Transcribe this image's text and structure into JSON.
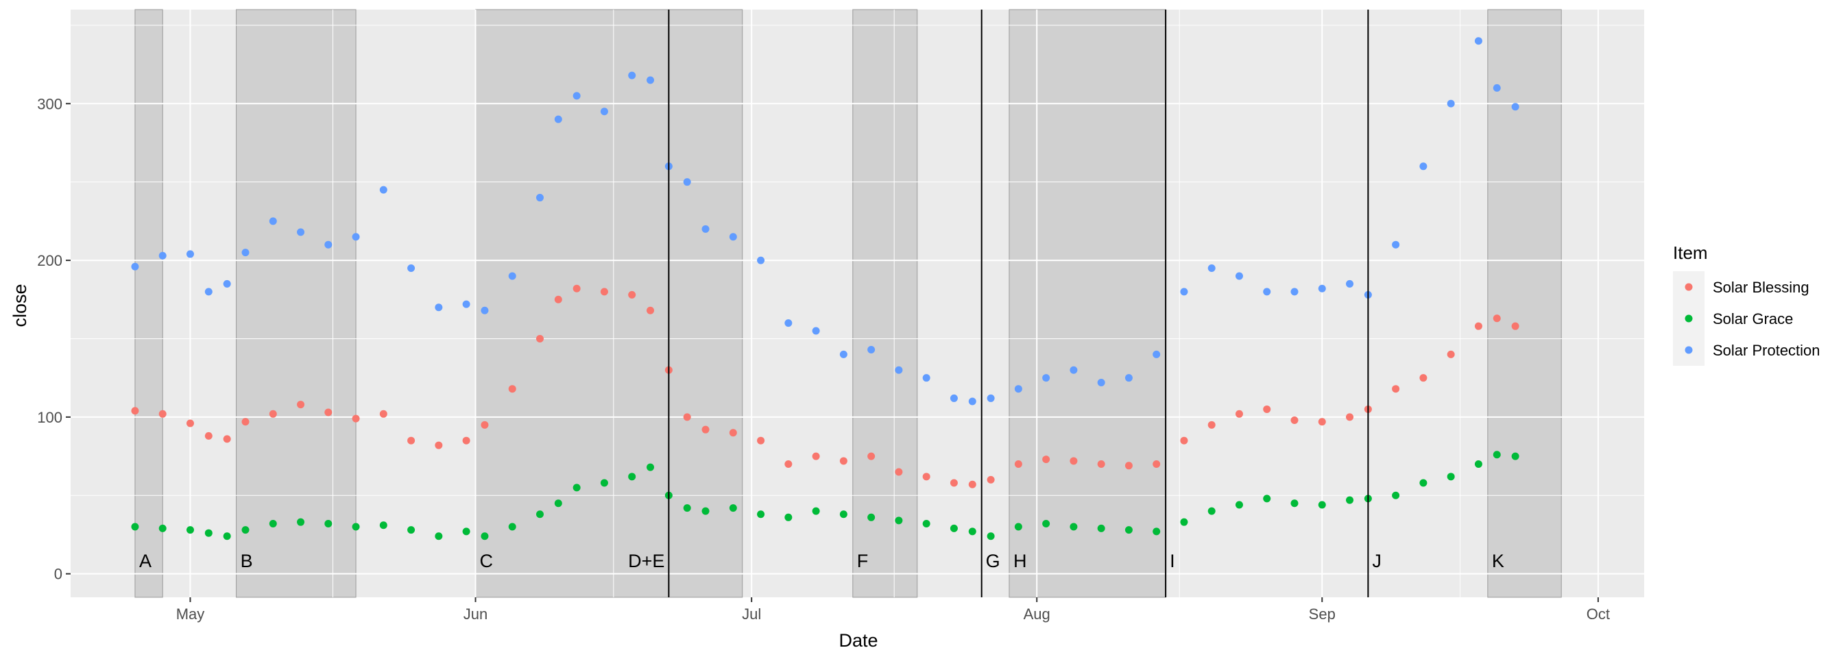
{
  "chart_data": {
    "type": "scatter",
    "xlabel": "Date",
    "ylabel": "close",
    "x_range": [
      "2017-04-18",
      "2017-10-06"
    ],
    "ylim": [
      -15,
      360
    ],
    "x_ticks": [
      {
        "date": "2017-05-01",
        "label": "May"
      },
      {
        "date": "2017-06-01",
        "label": "Jun"
      },
      {
        "date": "2017-07-01",
        "label": "Jul"
      },
      {
        "date": "2017-08-01",
        "label": "Aug"
      },
      {
        "date": "2017-09-01",
        "label": "Sep"
      },
      {
        "date": "2017-10-01",
        "label": "Oct"
      }
    ],
    "y_ticks": [
      0,
      100,
      200,
      300
    ],
    "grid": true,
    "legend": {
      "title": "Item",
      "position": "right",
      "entries": [
        {
          "name": "Solar Blessing",
          "color": "#F8766D"
        },
        {
          "name": "Solar Grace",
          "color": "#00BA38"
        },
        {
          "name": "Solar Protection",
          "color": "#619CFF"
        }
      ]
    },
    "shaded_periods": [
      {
        "label": "A",
        "start": "2017-04-25",
        "end": "2017-04-28"
      },
      {
        "label": "B",
        "start": "2017-05-06",
        "end": "2017-05-19"
      },
      {
        "label": "C",
        "start": "2017-06-01",
        "end": "2017-06-30"
      },
      {
        "label": "F",
        "start": "2017-07-12",
        "end": "2017-07-19"
      },
      {
        "label": "H",
        "start": "2017-07-29",
        "end": "2017-08-15"
      },
      {
        "label": "K",
        "start": "2017-09-19",
        "end": "2017-09-27"
      }
    ],
    "event_lines": [
      {
        "label": "D+E",
        "date": "2017-06-22"
      },
      {
        "label": "G",
        "date": "2017-07-26"
      },
      {
        "label": "I",
        "date": "2017-08-15"
      },
      {
        "label": "J",
        "date": "2017-09-06"
      }
    ],
    "series": [
      {
        "name": "Solar Blessing",
        "color": "#F8766D",
        "x": [
          "2017-04-25",
          "2017-04-28",
          "2017-05-01",
          "2017-05-03",
          "2017-05-05",
          "2017-05-07",
          "2017-05-10",
          "2017-05-13",
          "2017-05-16",
          "2017-05-19",
          "2017-05-22",
          "2017-05-25",
          "2017-05-28",
          "2017-05-31",
          "2017-06-02",
          "2017-06-05",
          "2017-06-08",
          "2017-06-10",
          "2017-06-12",
          "2017-06-15",
          "2017-06-18",
          "2017-06-20",
          "2017-06-22",
          "2017-06-24",
          "2017-06-26",
          "2017-06-29",
          "2017-07-02",
          "2017-07-05",
          "2017-07-08",
          "2017-07-11",
          "2017-07-14",
          "2017-07-17",
          "2017-07-20",
          "2017-07-23",
          "2017-07-25",
          "2017-07-27",
          "2017-07-30",
          "2017-08-02",
          "2017-08-05",
          "2017-08-08",
          "2017-08-11",
          "2017-08-14",
          "2017-08-17",
          "2017-08-20",
          "2017-08-23",
          "2017-08-26",
          "2017-08-29",
          "2017-09-01",
          "2017-09-04",
          "2017-09-06",
          "2017-09-09",
          "2017-09-12",
          "2017-09-15",
          "2017-09-18",
          "2017-09-20",
          "2017-09-22"
        ],
        "y": [
          104,
          102,
          96,
          88,
          86,
          97,
          102,
          108,
          103,
          99,
          102,
          85,
          82,
          85,
          95,
          118,
          150,
          175,
          182,
          180,
          178,
          168,
          130,
          100,
          92,
          90,
          85,
          70,
          75,
          72,
          75,
          65,
          62,
          58,
          57,
          60,
          70,
          73,
          72,
          70,
          69,
          70,
          85,
          95,
          102,
          105,
          98,
          97,
          100,
          105,
          118,
          125,
          140,
          158,
          163,
          158
        ]
      },
      {
        "name": "Solar Grace",
        "color": "#00BA38",
        "x": [
          "2017-04-25",
          "2017-04-28",
          "2017-05-01",
          "2017-05-03",
          "2017-05-05",
          "2017-05-07",
          "2017-05-10",
          "2017-05-13",
          "2017-05-16",
          "2017-05-19",
          "2017-05-22",
          "2017-05-25",
          "2017-05-28",
          "2017-05-31",
          "2017-06-02",
          "2017-06-05",
          "2017-06-08",
          "2017-06-10",
          "2017-06-12",
          "2017-06-15",
          "2017-06-18",
          "2017-06-20",
          "2017-06-22",
          "2017-06-24",
          "2017-06-26",
          "2017-06-29",
          "2017-07-02",
          "2017-07-05",
          "2017-07-08",
          "2017-07-11",
          "2017-07-14",
          "2017-07-17",
          "2017-07-20",
          "2017-07-23",
          "2017-07-25",
          "2017-07-27",
          "2017-07-30",
          "2017-08-02",
          "2017-08-05",
          "2017-08-08",
          "2017-08-11",
          "2017-08-14",
          "2017-08-17",
          "2017-08-20",
          "2017-08-23",
          "2017-08-26",
          "2017-08-29",
          "2017-09-01",
          "2017-09-04",
          "2017-09-06",
          "2017-09-09",
          "2017-09-12",
          "2017-09-15",
          "2017-09-18",
          "2017-09-20",
          "2017-09-22"
        ],
        "y": [
          30,
          29,
          28,
          26,
          24,
          28,
          32,
          33,
          32,
          30,
          31,
          28,
          24,
          27,
          24,
          30,
          38,
          45,
          55,
          58,
          62,
          68,
          50,
          42,
          40,
          42,
          38,
          36,
          40,
          38,
          36,
          34,
          32,
          29,
          27,
          24,
          30,
          32,
          30,
          29,
          28,
          27,
          33,
          40,
          44,
          48,
          45,
          44,
          47,
          48,
          50,
          58,
          62,
          70,
          76,
          75
        ]
      },
      {
        "name": "Solar Protection",
        "color": "#619CFF",
        "x": [
          "2017-04-25",
          "2017-04-28",
          "2017-05-01",
          "2017-05-03",
          "2017-05-05",
          "2017-05-07",
          "2017-05-10",
          "2017-05-13",
          "2017-05-16",
          "2017-05-19",
          "2017-05-22",
          "2017-05-25",
          "2017-05-28",
          "2017-05-31",
          "2017-06-02",
          "2017-06-05",
          "2017-06-08",
          "2017-06-10",
          "2017-06-12",
          "2017-06-15",
          "2017-06-18",
          "2017-06-20",
          "2017-06-22",
          "2017-06-24",
          "2017-06-26",
          "2017-06-29",
          "2017-07-02",
          "2017-07-05",
          "2017-07-08",
          "2017-07-11",
          "2017-07-14",
          "2017-07-17",
          "2017-07-20",
          "2017-07-23",
          "2017-07-25",
          "2017-07-27",
          "2017-07-30",
          "2017-08-02",
          "2017-08-05",
          "2017-08-08",
          "2017-08-11",
          "2017-08-14",
          "2017-08-17",
          "2017-08-20",
          "2017-08-23",
          "2017-08-26",
          "2017-08-29",
          "2017-09-01",
          "2017-09-04",
          "2017-09-06",
          "2017-09-09",
          "2017-09-12",
          "2017-09-15",
          "2017-09-18",
          "2017-09-20",
          "2017-09-22"
        ],
        "y": [
          196,
          203,
          204,
          180,
          185,
          205,
          225,
          218,
          210,
          215,
          245,
          195,
          170,
          172,
          168,
          190,
          240,
          290,
          305,
          295,
          318,
          315,
          260,
          250,
          220,
          215,
          200,
          160,
          155,
          140,
          143,
          130,
          125,
          112,
          110,
          112,
          118,
          125,
          130,
          122,
          125,
          140,
          180,
          195,
          190,
          180,
          180,
          182,
          185,
          178,
          210,
          260,
          300,
          340,
          310,
          298
        ]
      }
    ]
  }
}
